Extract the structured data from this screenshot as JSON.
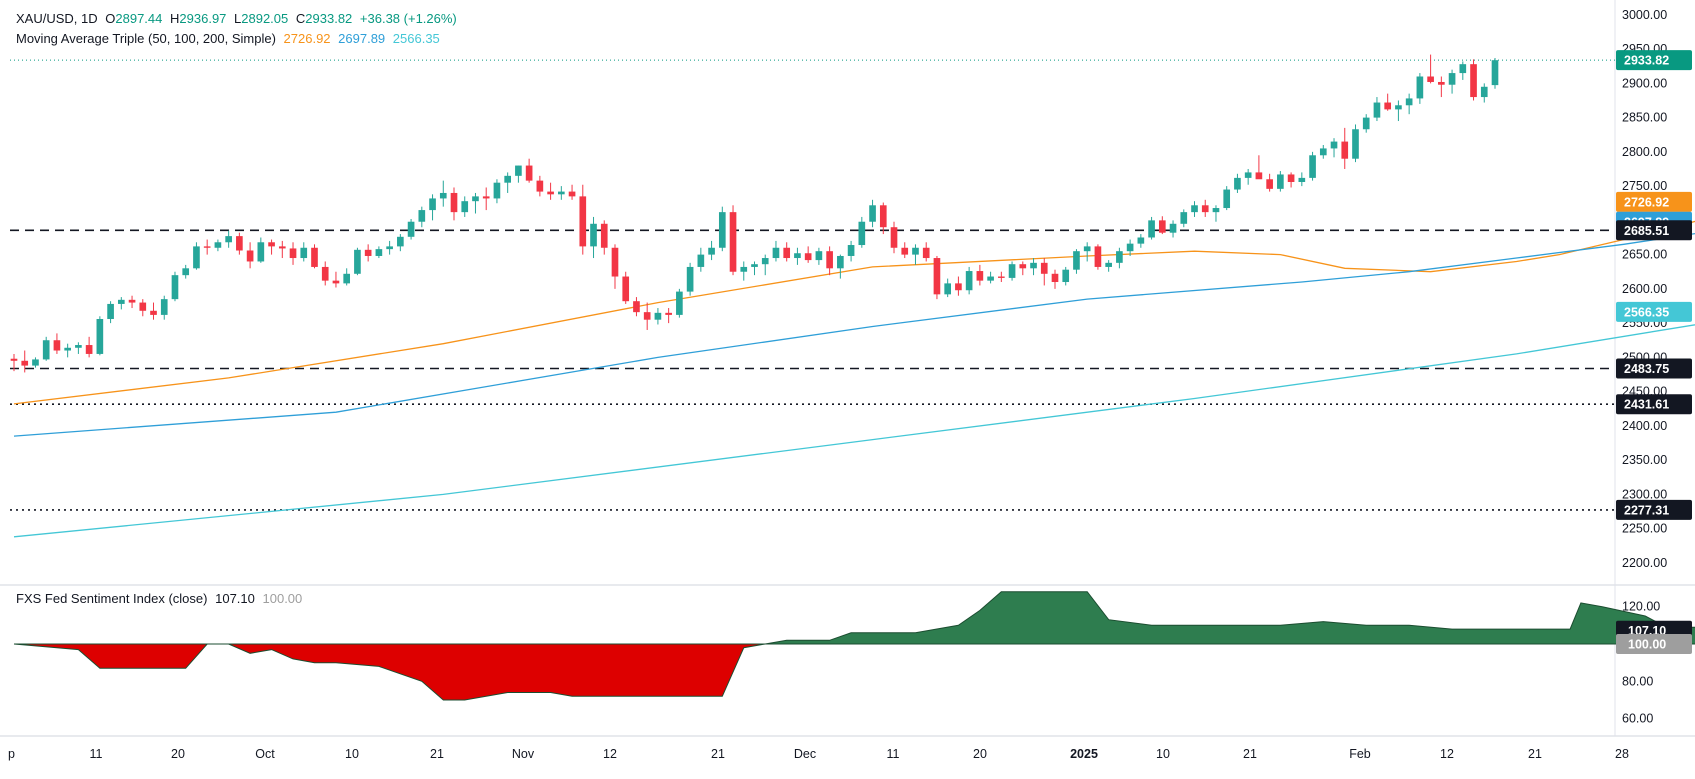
{
  "legend": {
    "symbol": "XAU/USD, 1D",
    "open_label": "O",
    "open": "2897.44",
    "high_label": "H",
    "high": "2936.97",
    "low_label": "L",
    "low": "2892.05",
    "close_label": "C",
    "close": "2933.82",
    "change": "+36.38 (+1.26%)",
    "ma_title": "Moving Average Triple (50, 100, 200, Simple)",
    "ma50": "2726.92",
    "ma100": "2697.89",
    "ma200": "2566.35",
    "indicator_title": "FXS Fed Sentiment Index (close)",
    "indicator_value": "107.10",
    "indicator_base": "100.00"
  },
  "colors": {
    "up": "#26a69a",
    "down": "#f23645",
    "ma50": "#f7931a",
    "ma100": "#2f9fd8",
    "ma200": "#44c7d6",
    "sentiment_pos": "#2e7d4f",
    "sentiment_neg": "#dd0000"
  },
  "price_axis": {
    "ticks": [
      "3000.00",
      "2950.00",
      "2900.00",
      "2850.00",
      "2800.00",
      "2750.00",
      "2700.00",
      "2650.00",
      "2600.00",
      "2550.00",
      "2500.00",
      "2450.00",
      "2400.00",
      "2350.00",
      "2300.00",
      "2250.00",
      "2200.00"
    ],
    "min": 2175,
    "max": 3010
  },
  "indicator_axis": {
    "ticks": [
      "120.00",
      "80.00",
      "60.00"
    ],
    "min": 55,
    "max": 130
  },
  "time_axis": {
    "labels": [
      "p",
      "11",
      "20",
      "Oct",
      "10",
      "21",
      "Nov",
      "12",
      "21",
      "Dec",
      "11",
      "20",
      "2025",
      "10",
      "21",
      "Feb",
      "12",
      "21",
      "28"
    ],
    "bold": [
      "2025"
    ]
  },
  "price_tags": [
    {
      "label": "2933.82",
      "color": "#089981"
    },
    {
      "label": "2726.92",
      "color": "#f7931a"
    },
    {
      "label": "2697.89",
      "color": "#2f9fd8"
    },
    {
      "label": "2685.51",
      "color": "#131722"
    },
    {
      "label": "2566.35",
      "color": "#44c7d6"
    },
    {
      "label": "2483.75",
      "color": "#131722"
    },
    {
      "label": "2431.61",
      "color": "#131722"
    },
    {
      "label": "2277.31",
      "color": "#131722"
    }
  ],
  "indicator_tags": [
    {
      "label": "107.10",
      "color": "#131722"
    },
    {
      "label": "100.00",
      "color": "#9e9e9e"
    }
  ],
  "chart_data": {
    "type": "candlestick",
    "title": "XAU/USD, 1D",
    "ylim": [
      2175,
      3010
    ],
    "horizontal_levels": [
      {
        "value": 2685.51,
        "style": "dashed"
      },
      {
        "value": 2483.75,
        "style": "dashed"
      },
      {
        "value": 2431.61,
        "style": "dotted"
      },
      {
        "value": 2277.31,
        "style": "dotted"
      }
    ],
    "candles": [
      [
        2498,
        2505,
        2480,
        2495
      ],
      [
        2495,
        2510,
        2478,
        2488
      ],
      [
        2488,
        2500,
        2485,
        2497
      ],
      [
        2497,
        2530,
        2495,
        2525
      ],
      [
        2525,
        2535,
        2505,
        2510
      ],
      [
        2510,
        2520,
        2500,
        2514
      ],
      [
        2514,
        2522,
        2505,
        2518
      ],
      [
        2518,
        2530,
        2500,
        2505
      ],
      [
        2505,
        2560,
        2503,
        2556
      ],
      [
        2556,
        2582,
        2550,
        2578
      ],
      [
        2578,
        2588,
        2570,
        2584
      ],
      [
        2584,
        2590,
        2572,
        2580
      ],
      [
        2580,
        2585,
        2560,
        2568
      ],
      [
        2568,
        2580,
        2555,
        2562
      ],
      [
        2562,
        2590,
        2555,
        2585
      ],
      [
        2585,
        2625,
        2582,
        2620
      ],
      [
        2620,
        2635,
        2615,
        2630
      ],
      [
        2630,
        2668,
        2628,
        2662
      ],
      [
        2662,
        2672,
        2650,
        2660
      ],
      [
        2660,
        2672,
        2655,
        2668
      ],
      [
        2668,
        2685,
        2660,
        2677
      ],
      [
        2677,
        2682,
        2650,
        2656
      ],
      [
        2656,
        2668,
        2630,
        2640
      ],
      [
        2640,
        2675,
        2638,
        2668
      ],
      [
        2668,
        2672,
        2650,
        2662
      ],
      [
        2662,
        2670,
        2645,
        2659
      ],
      [
        2659,
        2668,
        2635,
        2645
      ],
      [
        2645,
        2668,
        2640,
        2660
      ],
      [
        2660,
        2665,
        2630,
        2632
      ],
      [
        2632,
        2640,
        2605,
        2612
      ],
      [
        2612,
        2625,
        2602,
        2608
      ],
      [
        2608,
        2630,
        2605,
        2622
      ],
      [
        2622,
        2660,
        2620,
        2657
      ],
      [
        2657,
        2665,
        2640,
        2648
      ],
      [
        2648,
        2662,
        2645,
        2658
      ],
      [
        2658,
        2670,
        2650,
        2662
      ],
      [
        2662,
        2680,
        2655,
        2676
      ],
      [
        2676,
        2702,
        2672,
        2698
      ],
      [
        2698,
        2720,
        2690,
        2715
      ],
      [
        2715,
        2738,
        2700,
        2732
      ],
      [
        2732,
        2758,
        2720,
        2740
      ],
      [
        2740,
        2748,
        2700,
        2712
      ],
      [
        2712,
        2735,
        2705,
        2728
      ],
      [
        2728,
        2740,
        2710,
        2735
      ],
      [
        2735,
        2748,
        2715,
        2732
      ],
      [
        2732,
        2760,
        2725,
        2755
      ],
      [
        2755,
        2770,
        2740,
        2765
      ],
      [
        2765,
        2780,
        2755,
        2780
      ],
      [
        2780,
        2790,
        2755,
        2758
      ],
      [
        2758,
        2765,
        2735,
        2742
      ],
      [
        2742,
        2755,
        2730,
        2738
      ],
      [
        2738,
        2750,
        2730,
        2742
      ],
      [
        2742,
        2752,
        2730,
        2735
      ],
      [
        2735,
        2752,
        2650,
        2662
      ],
      [
        2662,
        2705,
        2645,
        2695
      ],
      [
        2695,
        2700,
        2650,
        2660
      ],
      [
        2660,
        2665,
        2600,
        2618
      ],
      [
        2618,
        2625,
        2578,
        2582
      ],
      [
        2582,
        2588,
        2560,
        2566
      ],
      [
        2566,
        2580,
        2540,
        2555
      ],
      [
        2555,
        2572,
        2548,
        2565
      ],
      [
        2565,
        2572,
        2550,
        2562
      ],
      [
        2562,
        2600,
        2558,
        2596
      ],
      [
        2596,
        2638,
        2590,
        2632
      ],
      [
        2632,
        2660,
        2625,
        2650
      ],
      [
        2650,
        2670,
        2642,
        2660
      ],
      [
        2660,
        2720,
        2655,
        2712
      ],
      [
        2712,
        2722,
        2620,
        2625
      ],
      [
        2625,
        2640,
        2612,
        2632
      ],
      [
        2632,
        2640,
        2620,
        2636
      ],
      [
        2636,
        2650,
        2620,
        2645
      ],
      [
        2645,
        2670,
        2640,
        2660
      ],
      [
        2660,
        2668,
        2640,
        2645
      ],
      [
        2645,
        2660,
        2635,
        2652
      ],
      [
        2652,
        2662,
        2638,
        2642
      ],
      [
        2642,
        2660,
        2635,
        2655
      ],
      [
        2655,
        2662,
        2620,
        2630
      ],
      [
        2630,
        2650,
        2615,
        2648
      ],
      [
        2648,
        2670,
        2640,
        2664
      ],
      [
        2664,
        2705,
        2660,
        2698
      ],
      [
        2698,
        2730,
        2690,
        2722
      ],
      [
        2722,
        2726,
        2680,
        2690
      ],
      [
        2690,
        2698,
        2652,
        2660
      ],
      [
        2660,
        2668,
        2645,
        2650
      ],
      [
        2650,
        2665,
        2635,
        2660
      ],
      [
        2660,
        2668,
        2640,
        2645
      ],
      [
        2645,
        2648,
        2585,
        2592
      ],
      [
        2592,
        2615,
        2588,
        2608
      ],
      [
        2608,
        2618,
        2590,
        2598
      ],
      [
        2598,
        2632,
        2592,
        2626
      ],
      [
        2626,
        2635,
        2605,
        2612
      ],
      [
        2612,
        2625,
        2608,
        2618
      ],
      [
        2618,
        2625,
        2610,
        2616
      ],
      [
        2616,
        2640,
        2612,
        2636
      ],
      [
        2636,
        2640,
        2620,
        2630
      ],
      [
        2630,
        2645,
        2620,
        2638
      ],
      [
        2638,
        2645,
        2605,
        2622
      ],
      [
        2622,
        2628,
        2600,
        2610
      ],
      [
        2610,
        2632,
        2605,
        2628
      ],
      [
        2628,
        2658,
        2622,
        2655
      ],
      [
        2655,
        2668,
        2640,
        2662
      ],
      [
        2662,
        2665,
        2628,
        2632
      ],
      [
        2632,
        2642,
        2625,
        2638
      ],
      [
        2638,
        2660,
        2630,
        2655
      ],
      [
        2655,
        2672,
        2648,
        2666
      ],
      [
        2666,
        2680,
        2660,
        2675
      ],
      [
        2675,
        2705,
        2672,
        2700
      ],
      [
        2700,
        2706,
        2680,
        2682
      ],
      [
        2682,
        2700,
        2675,
        2695
      ],
      [
        2695,
        2716,
        2690,
        2712
      ],
      [
        2712,
        2728,
        2705,
        2722
      ],
      [
        2722,
        2730,
        2705,
        2712
      ],
      [
        2712,
        2722,
        2698,
        2718
      ],
      [
        2718,
        2750,
        2715,
        2745
      ],
      [
        2745,
        2768,
        2740,
        2762
      ],
      [
        2762,
        2775,
        2752,
        2770
      ],
      [
        2770,
        2795,
        2765,
        2760
      ],
      [
        2760,
        2768,
        2742,
        2746
      ],
      [
        2746,
        2772,
        2742,
        2767
      ],
      [
        2767,
        2770,
        2748,
        2756
      ],
      [
        2756,
        2770,
        2750,
        2762
      ],
      [
        2762,
        2800,
        2758,
        2795
      ],
      [
        2795,
        2810,
        2790,
        2805
      ],
      [
        2805,
        2820,
        2792,
        2815
      ],
      [
        2815,
        2835,
        2775,
        2790
      ],
      [
        2790,
        2840,
        2785,
        2833
      ],
      [
        2833,
        2855,
        2828,
        2850
      ],
      [
        2850,
        2880,
        2845,
        2872
      ],
      [
        2872,
        2885,
        2860,
        2862
      ],
      [
        2862,
        2875,
        2845,
        2868
      ],
      [
        2868,
        2885,
        2855,
        2878
      ],
      [
        2878,
        2915,
        2870,
        2910
      ],
      [
        2910,
        2942,
        2900,
        2902
      ],
      [
        2902,
        2910,
        2880,
        2898
      ],
      [
        2898,
        2920,
        2885,
        2915
      ],
      [
        2915,
        2932,
        2905,
        2928
      ],
      [
        2928,
        2935,
        2875,
        2880
      ],
      [
        2880,
        2900,
        2872,
        2895
      ],
      [
        2897.44,
        2936.97,
        2892.05,
        2933.82
      ]
    ],
    "series": [
      {
        "name": "50",
        "values": [
          [
            0,
            2432
          ],
          [
            20,
            2470
          ],
          [
            40,
            2520
          ],
          [
            60,
            2580
          ],
          [
            80,
            2632
          ],
          [
            100,
            2648
          ],
          [
            110,
            2655
          ],
          [
            118,
            2650
          ],
          [
            124,
            2630
          ],
          [
            132,
            2625
          ],
          [
            140,
            2640
          ],
          [
            144,
            2650
          ],
          [
            150,
            2672
          ],
          [
            157,
            2700
          ],
          [
            164,
            2726.92
          ]
        ]
      },
      {
        "name": "100",
        "values": [
          [
            0,
            2385
          ],
          [
            30,
            2420
          ],
          [
            60,
            2500
          ],
          [
            80,
            2545
          ],
          [
            100,
            2585
          ],
          [
            120,
            2610
          ],
          [
            130,
            2625
          ],
          [
            140,
            2645
          ],
          [
            150,
            2665
          ],
          [
            164,
            2697.89
          ]
        ]
      },
      {
        "name": "200",
        "values": [
          [
            0,
            2238
          ],
          [
            40,
            2300
          ],
          [
            80,
            2380
          ],
          [
            110,
            2440
          ],
          [
            140,
            2505
          ],
          [
            164,
            2566.35
          ]
        ]
      }
    ],
    "indicator": {
      "name": "FXS Fed Sentiment Index (close)",
      "baseline": 100,
      "ylim": [
        55,
        130
      ],
      "values": [
        [
          0,
          100
        ],
        [
          6,
          97
        ],
        [
          8,
          87
        ],
        [
          12,
          87
        ],
        [
          16,
          87
        ],
        [
          18,
          100
        ],
        [
          20,
          100
        ],
        [
          22,
          95
        ],
        [
          24,
          97
        ],
        [
          26,
          92
        ],
        [
          28,
          90
        ],
        [
          30,
          90
        ],
        [
          34,
          88
        ],
        [
          38,
          80
        ],
        [
          40,
          70
        ],
        [
          42,
          70
        ],
        [
          46,
          74
        ],
        [
          50,
          74
        ],
        [
          52,
          72
        ],
        [
          56,
          72
        ],
        [
          60,
          72
        ],
        [
          66,
          72
        ],
        [
          68,
          98
        ],
        [
          70,
          100
        ],
        [
          72,
          102
        ],
        [
          76,
          102
        ],
        [
          78,
          106
        ],
        [
          84,
          106
        ],
        [
          88,
          110
        ],
        [
          90,
          118
        ],
        [
          92,
          128
        ],
        [
          100,
          128
        ],
        [
          102,
          113
        ],
        [
          106,
          110
        ],
        [
          118,
          110
        ],
        [
          122,
          112
        ],
        [
          126,
          110
        ],
        [
          130,
          110
        ],
        [
          134,
          108
        ],
        [
          138,
          108
        ],
        [
          142,
          108
        ],
        [
          145,
          108
        ],
        [
          146,
          122
        ],
        [
          148,
          120
        ],
        [
          152,
          115
        ],
        [
          154,
          109
        ],
        [
          158,
          109
        ],
        [
          162,
          107.1
        ],
        [
          164,
          107.1
        ]
      ]
    }
  }
}
